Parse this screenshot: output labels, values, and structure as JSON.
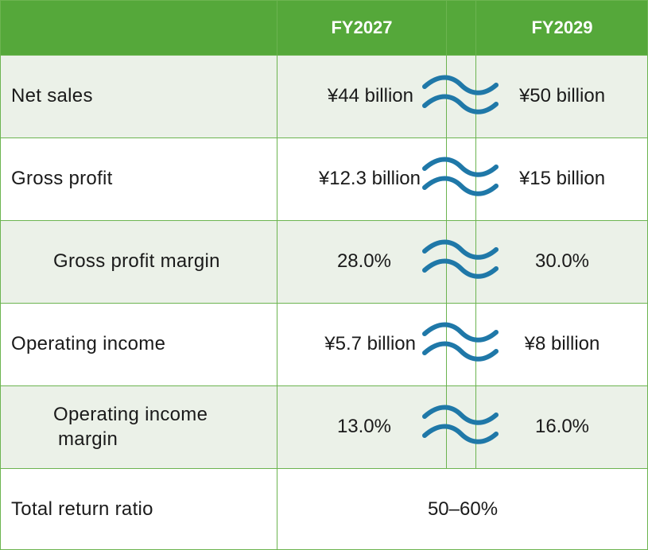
{
  "header": {
    "col_fy2027": "FY2027",
    "col_fy2029": "FY2029"
  },
  "rows": [
    {
      "label": "Net sales",
      "fy2027": "¥44 billion",
      "fy2029": "¥50 billion"
    },
    {
      "label": "Gross profit",
      "fy2027": "¥12.3 billion",
      "fy2029": "¥15 billion"
    },
    {
      "label": "Gross profit margin",
      "fy2027": "28.0%",
      "fy2029": "30.0%"
    },
    {
      "label": "Operating income",
      "fy2027": "¥5.7 billion",
      "fy2029": "¥8 billion"
    },
    {
      "label_line1": "Operating income",
      "label_line2": "margin",
      "fy2027": "13.0%",
      "fy2029": "16.0%"
    },
    {
      "label": "Total return ratio",
      "value": "50–60%"
    }
  ],
  "colors": {
    "header_bg": "#55a83a",
    "band_bg": "#ebf1e8",
    "wave": "#1f78a8",
    "grid": "#6cb450"
  },
  "icons": {
    "break_marker": "wave-break-icon"
  }
}
